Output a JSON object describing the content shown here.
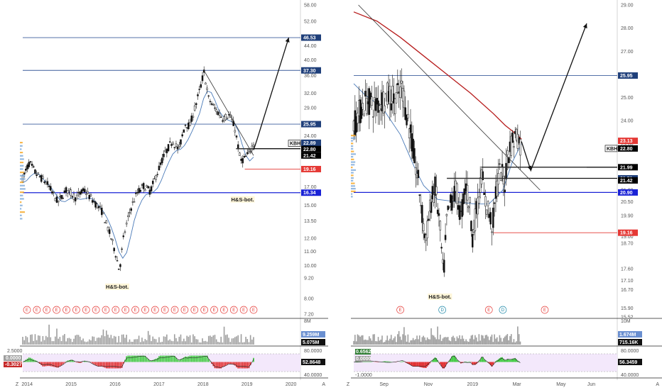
{
  "colors": {
    "background": "#ffffff",
    "up": "#111111",
    "down": "#111111",
    "blue_level": "#3b5d9c",
    "red_level": "#e53935",
    "ma_red": "#b71c1c",
    "ma_blue": "#4a7ab8",
    "macd_pos": "#35c935",
    "macd_neg": "#e02020",
    "volume": "#9e9e9e",
    "support": "#1a22d6",
    "osc_fill": "#f3e8fb",
    "event_red": "#e53935",
    "event_blue": "#1e88a8"
  },
  "chart_data": [
    {
      "type": "candlestick",
      "title": "",
      "panel": "left-weekly",
      "x_ticks": [
        "2014",
        "2015",
        "2016",
        "2017",
        "2018",
        "2019",
        "2020"
      ],
      "x_range": [
        2013.9,
        2020.2
      ],
      "y_scale": "log",
      "y_ticks": [
        "58.00",
        "52.00",
        "44.00",
        "40.00",
        "36.00",
        "32.00",
        "29.00",
        "26.00",
        "24.00",
        "21.00",
        "19.00",
        "17.00",
        "15.00",
        "13.50",
        "12.00",
        "11.00",
        "10.00",
        "9.20",
        "8.00",
        "7.20"
      ],
      "ylim": [
        7.2,
        58.0
      ],
      "close_path": [
        [
          2013.9,
          18.0
        ],
        [
          2014.05,
          20.0
        ],
        [
          2014.2,
          18.6
        ],
        [
          2014.45,
          17.4
        ],
        [
          2014.7,
          15.3
        ],
        [
          2014.9,
          16.7
        ],
        [
          2015.1,
          15.8
        ],
        [
          2015.3,
          16.6
        ],
        [
          2015.55,
          15.2
        ],
        [
          2015.7,
          14.4
        ],
        [
          2015.85,
          12.7
        ],
        [
          2016.0,
          11.0
        ],
        [
          2016.1,
          9.6
        ],
        [
          2016.2,
          12.2
        ],
        [
          2016.35,
          14.6
        ],
        [
          2016.5,
          16.3
        ],
        [
          2016.65,
          17.1
        ],
        [
          2016.8,
          16.5
        ],
        [
          2016.95,
          18.5
        ],
        [
          2017.1,
          20.8
        ],
        [
          2017.3,
          23.2
        ],
        [
          2017.45,
          21.8
        ],
        [
          2017.6,
          26.0
        ],
        [
          2017.7,
          25.6
        ],
        [
          2017.85,
          30.0
        ],
        [
          2017.95,
          33.5
        ],
        [
          2018.02,
          37.0
        ],
        [
          2018.12,
          31.0
        ],
        [
          2018.25,
          29.0
        ],
        [
          2018.45,
          27.0
        ],
        [
          2018.6,
          27.6
        ],
        [
          2018.72,
          25.4
        ],
        [
          2018.85,
          20.2
        ],
        [
          2018.95,
          20.6
        ],
        [
          2019.05,
          21.4
        ],
        [
          2019.15,
          22.8
        ]
      ],
      "h_levels": [
        {
          "label": "46.53",
          "value": 46.53,
          "tag_color": "#1f3f7a",
          "line_color": "#3b5d9c"
        },
        {
          "label": "37.30",
          "value": 37.3,
          "tag_color": "#1f3f7a",
          "line_color": "#3b5d9c"
        },
        {
          "label": "25.95",
          "value": 25.95,
          "tag_color": "#1f3f7a",
          "line_color": "#3b5d9c"
        },
        {
          "label": "21.99",
          "value": 21.99,
          "tag_color": "#000000",
          "line_color": "#111111"
        },
        {
          "label": "19.16",
          "value": 19.16,
          "tag_color": "#e53935",
          "line_color": "#e53935"
        },
        {
          "label": "16.34",
          "value": 16.34,
          "tag_color": "#1a22d6",
          "line_color": "#1a22d6"
        }
      ],
      "price_tags": [
        {
          "label": "22.89",
          "value": 22.89,
          "color": "#1f3f7a"
        },
        {
          "label": "KBH",
          "value": 22.8,
          "color": "#000000"
        },
        {
          "label": "22.80",
          "value": 22.8,
          "color": "#000000"
        },
        {
          "label": "21.99",
          "value": 21.99,
          "color": "#000000"
        },
        {
          "label": "21.42",
          "value": 21.42,
          "color": "#000000"
        },
        {
          "label": "19.16",
          "value": 19.16,
          "color": "#e53935"
        },
        {
          "label": "16.34",
          "value": 16.34,
          "color": "#1a22d6"
        }
      ],
      "trendlines": [
        {
          "from": [
            2018.02,
            37.3
          ],
          "to": [
            2019.15,
            21.0
          ]
        },
        {
          "from": [
            2018.75,
            21.99
          ],
          "to": [
            2019.15,
            21.99
          ]
        }
      ],
      "projection": [
        [
          2019.15,
          21.8
        ],
        [
          2019.22,
          23.2
        ],
        [
          2019.95,
          46.53
        ]
      ],
      "annotations": [
        {
          "text": "H&S-bot.",
          "x": 2016.05,
          "y": 8.6
        },
        {
          "text": "H&S-bot.",
          "x": 2018.9,
          "y": 15.5
        }
      ],
      "events": [
        "E",
        "E",
        "E",
        "E",
        "E",
        "E",
        "E",
        "E",
        "E",
        "E",
        "E",
        "E",
        "E",
        "E",
        "E",
        "E",
        "E",
        "E",
        "E",
        "E",
        "E",
        "E",
        "E",
        "E"
      ],
      "volume_tags": [
        "8M",
        "9.259M",
        "5.075M"
      ],
      "oscillator_tags": [
        "2.5000",
        "0.0000",
        "-0.3027",
        "80.0000",
        "52.8648",
        "40.0000"
      ]
    },
    {
      "type": "candlestick",
      "title": "",
      "panel": "right-daily",
      "x_ticks": [
        "Sep",
        "Nov",
        "2019",
        "Mar",
        "May",
        "Jun"
      ],
      "x_range": [
        0,
        100
      ],
      "x_tick_positions": [
        13,
        32,
        51,
        70,
        89,
        102
      ],
      "y_scale": "linear",
      "y_ticks": [
        "29.00",
        "28.00",
        "27.00",
        "26.00",
        "25.00",
        "24.00",
        "23.00",
        "22.00",
        "21.00",
        "20.50",
        "19.90",
        "19.00",
        "18.70",
        "17.60",
        "17.10",
        "16.70",
        "15.90",
        "15.52"
      ],
      "ylim": [
        15.52,
        29.0
      ],
      "close_path": [
        [
          0,
          23.8
        ],
        [
          3,
          24.5
        ],
        [
          6,
          24.9
        ],
        [
          9,
          24.6
        ],
        [
          12,
          24.9
        ],
        [
          15,
          25.1
        ],
        [
          18,
          24.9
        ],
        [
          21,
          25.4
        ],
        [
          22.5,
          24.4
        ],
        [
          24,
          23.7
        ],
        [
          26,
          22.3
        ],
        [
          28,
          21.2
        ],
        [
          30,
          19.4
        ],
        [
          31,
          18.8
        ],
        [
          33,
          20.4
        ],
        [
          35,
          21.1
        ],
        [
          37,
          19.4
        ],
        [
          38.5,
          17.2
        ],
        [
          40,
          19.8
        ],
        [
          42,
          20.6
        ],
        [
          44,
          21.0
        ],
        [
          46,
          19.8
        ],
        [
          48,
          21.3
        ],
        [
          50,
          20.2
        ],
        [
          51,
          19.0
        ],
        [
          52.5,
          20.0
        ],
        [
          54,
          20.9
        ],
        [
          55,
          21.9
        ],
        [
          56,
          20.6
        ],
        [
          58,
          20.1
        ],
        [
          59.5,
          19.4
        ],
        [
          61,
          20.9
        ],
        [
          63,
          21.9
        ],
        [
          64,
          21.5
        ],
        [
          65,
          21.3
        ],
        [
          66,
          22.6
        ],
        [
          68,
          23.1
        ],
        [
          69,
          23.2
        ],
        [
          70,
          23.5
        ],
        [
          71.5,
          22.9
        ]
      ],
      "h_levels": [
        {
          "label": "25.95",
          "value": 25.95,
          "tag_color": "#1f3f7a",
          "line_color": "#3b5d9c"
        },
        {
          "label": "21.99",
          "value": 21.99,
          "tag_color": "#000000",
          "line_color": "#111111"
        },
        {
          "label": "21.51",
          "value": 21.51,
          "tag_color": "#1f3f7a",
          "line_color": "#111111"
        },
        {
          "label": "20.90",
          "value": 20.9,
          "tag_color": "#1a22d6",
          "line_color": "#1a22d6"
        },
        {
          "label": "19.16",
          "value": 19.16,
          "tag_color": "#e53935",
          "line_color": "#e53935"
        }
      ],
      "price_tags": [
        {
          "label": "23.13",
          "value": 23.13,
          "color": "#e53935"
        },
        {
          "label": "KBH",
          "value": 22.8,
          "color": "#000000"
        },
        {
          "label": "22.80",
          "value": 22.8,
          "color": "#000000"
        },
        {
          "label": "21.42",
          "value": 21.42,
          "color": "#000000"
        }
      ],
      "ma_red": [
        [
          0,
          28.7
        ],
        [
          10,
          28.3
        ],
        [
          20,
          27.6
        ],
        [
          30,
          26.8
        ],
        [
          40,
          26.0
        ],
        [
          50,
          25.2
        ],
        [
          60,
          24.3
        ],
        [
          65,
          23.8
        ],
        [
          70,
          23.4
        ],
        [
          72,
          23.2
        ]
      ],
      "ma_blue": [
        [
          0,
          25.6
        ],
        [
          5,
          25.1
        ],
        [
          12,
          24.6
        ],
        [
          20,
          23.4
        ],
        [
          26,
          22.0
        ],
        [
          30,
          21.2
        ],
        [
          36,
          20.6
        ],
        [
          44,
          20.5
        ],
        [
          52,
          20.4
        ],
        [
          58,
          20.4
        ],
        [
          64,
          21.0
        ],
        [
          68,
          22.2
        ],
        [
          72,
          23.0
        ]
      ],
      "trendlines": [
        {
          "from": [
            2,
            29.0
          ],
          "to": [
            80,
            21.0
          ]
        },
        {
          "from": [
            40,
            21.51
          ],
          "to": [
            76,
            21.51
          ]
        },
        {
          "from": [
            55,
            21.99
          ],
          "to": [
            100,
            21.99
          ]
        }
      ],
      "projection": [
        [
          72,
          23.1
        ],
        [
          76,
          21.85
        ],
        [
          100,
          28.2
        ]
      ],
      "annotations": [
        {
          "text": "H&S-bot.",
          "x": 37,
          "y": 16.35
        }
      ],
      "events": [
        {
          "text": "E",
          "x": 20,
          "color": "#e53935"
        },
        {
          "text": "D",
          "x": 38,
          "color": "#1e88a8"
        },
        {
          "text": "E",
          "x": 58,
          "color": "#e53935"
        },
        {
          "text": "D",
          "x": 64,
          "color": "#1e88a8"
        },
        {
          "text": "E",
          "x": 82,
          "color": "#e53935"
        }
      ],
      "volume_tags": [
        "10M",
        "1.674M",
        "715.16K"
      ],
      "oscillator_tags": [
        "0.6562",
        "0.0000",
        "-1.0000",
        "80.0000",
        "56.3459",
        "40.0000"
      ]
    }
  ]
}
